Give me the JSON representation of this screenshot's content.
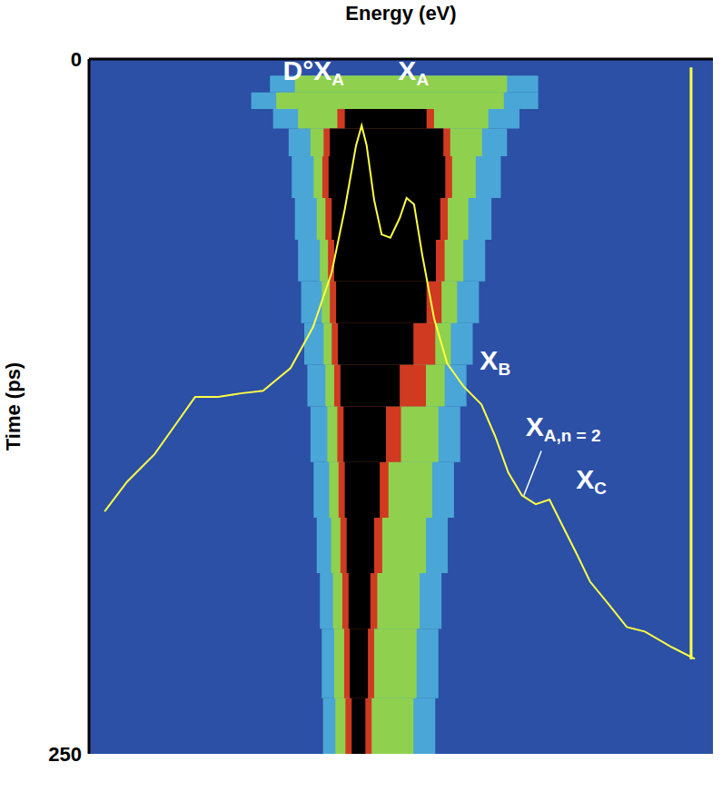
{
  "chart_data": {
    "type": "streak_image",
    "x_label": "Energy (eV)",
    "y_label": "Time (ps)",
    "xlim": [
      0,
      100
    ],
    "ylim": [
      0,
      250
    ],
    "yticks": [
      0,
      250
    ],
    "tick_labels": "y",
    "background": "#2b50a6",
    "streak": {
      "t": [
        6,
        12,
        18,
        25,
        35,
        50,
        65,
        80,
        95,
        110,
        125,
        145,
        165,
        185,
        205,
        230,
        250
      ],
      "levels": [
        {
          "color": "#4aa6d6",
          "bounds": [
            [
              29.0,
              72.0
            ],
            [
              26.0,
              72.0
            ],
            [
              29.5,
              69.0
            ],
            [
              32.0,
              67.0
            ],
            [
              32.5,
              66.0
            ],
            [
              33.0,
              64.5
            ],
            [
              33.5,
              63.5
            ],
            [
              34.0,
              62.5
            ],
            [
              34.5,
              61.5
            ],
            [
              35.0,
              60.5
            ],
            [
              35.5,
              59.5
            ],
            [
              36.0,
              58.5
            ],
            [
              36.5,
              57.5
            ],
            [
              37.0,
              56.5
            ],
            [
              37.3,
              56.0
            ],
            [
              37.5,
              55.5
            ]
          ]
        },
        {
          "color": "#8fd14f",
          "bounds": [
            [
              33.0,
              67.0
            ],
            [
              30.0,
              66.5
            ],
            [
              33.5,
              64.0
            ],
            [
              35.5,
              63.0
            ],
            [
              36.0,
              62.0
            ],
            [
              36.5,
              60.8
            ],
            [
              37.0,
              60.0
            ],
            [
              37.3,
              59.0
            ],
            [
              37.6,
              58.0
            ],
            [
              37.9,
              57.0
            ],
            [
              38.2,
              56.0
            ],
            [
              38.5,
              55.0
            ],
            [
              38.8,
              54.0
            ],
            [
              39.1,
              53.0
            ],
            [
              39.3,
              52.5
            ],
            [
              39.5,
              52.0
            ]
          ]
        },
        {
          "color": "#d03a20",
          "bounds": [
            null,
            null,
            [
              39.8,
              55.3
            ],
            [
              37.6,
              57.9
            ],
            [
              37.4,
              58.2
            ],
            [
              37.9,
              57.5
            ],
            [
              38.3,
              57.0
            ],
            [
              38.6,
              56.5
            ],
            [
              38.9,
              55.5
            ],
            [
              39.3,
              54.0
            ],
            [
              39.8,
              50.0
            ],
            [
              40.0,
              48.0
            ],
            [
              40.3,
              47.0
            ],
            [
              40.6,
              46.2
            ],
            [
              40.9,
              45.7
            ],
            [
              41.1,
              45.3
            ]
          ]
        },
        {
          "color": "#000000",
          "bounds": [
            null,
            null,
            [
              41.0,
              54.1
            ],
            [
              38.6,
              56.8
            ],
            [
              38.4,
              57.1
            ],
            [
              38.9,
              56.3
            ],
            [
              39.3,
              55.6
            ],
            [
              39.6,
              54.1
            ],
            [
              39.9,
              52.0
            ],
            [
              40.3,
              49.8
            ],
            [
              40.8,
              47.6
            ],
            [
              41.0,
              46.6
            ],
            [
              41.3,
              45.7
            ],
            [
              41.6,
              45.1
            ],
            [
              41.8,
              44.7
            ],
            [
              42.1,
              44.3
            ]
          ]
        }
      ]
    },
    "spectrum": {
      "color": "#ffff44",
      "x": [
        2.5,
        6.1,
        10.5,
        14.1,
        17.0,
        20.7,
        24.3,
        27.9,
        32.3,
        35.9,
        38.9,
        41.0,
        42.8,
        43.7,
        44.5,
        45.7,
        46.9,
        48.3,
        49.8,
        50.9,
        52.1,
        53.4,
        55.3,
        57.4,
        60.0,
        62.9,
        65.1,
        67.2,
        69.4,
        71.6,
        73.8,
        76.0,
        78.2,
        80.3,
        83.3,
        86.2,
        89.1,
        93.4,
        97.1
      ],
      "y": [
        162.8,
        152.1,
        142.2,
        130.8,
        121.6,
        121.6,
        120.3,
        119.4,
        111.2,
        96.5,
        76.8,
        54.0,
        31.1,
        23.9,
        31.1,
        50.7,
        63.1,
        64.3,
        57.2,
        50.0,
        52.3,
        70.3,
        93.2,
        109.5,
        117.7,
        124.3,
        135.7,
        148.8,
        157.0,
        160.2,
        158.5,
        168.4,
        178.2,
        188.0,
        196.2,
        204.4,
        206.0,
        211.6,
        215.8
      ]
    },
    "spectrum_axis": {
      "x": 96.5,
      "y": [
        3,
        216
      ]
    },
    "annotations": [
      {
        "text": "D°X",
        "sub": "A",
        "x": 36.0,
        "y": 5
      },
      {
        "text": "X",
        "sub": "A",
        "x": 52.0,
        "y": 5
      },
      {
        "text": "X",
        "sub": "B",
        "x": 65.1,
        "y": 109
      },
      {
        "text": "X",
        "sub": "A,n = 2",
        "x": 76.0,
        "y": 133,
        "pointer": [
          [
            72.5,
            141
          ],
          [
            69.7,
            157
          ]
        ]
      },
      {
        "text": "X",
        "sub": "C",
        "x": 80.5,
        "y": 152
      }
    ]
  }
}
